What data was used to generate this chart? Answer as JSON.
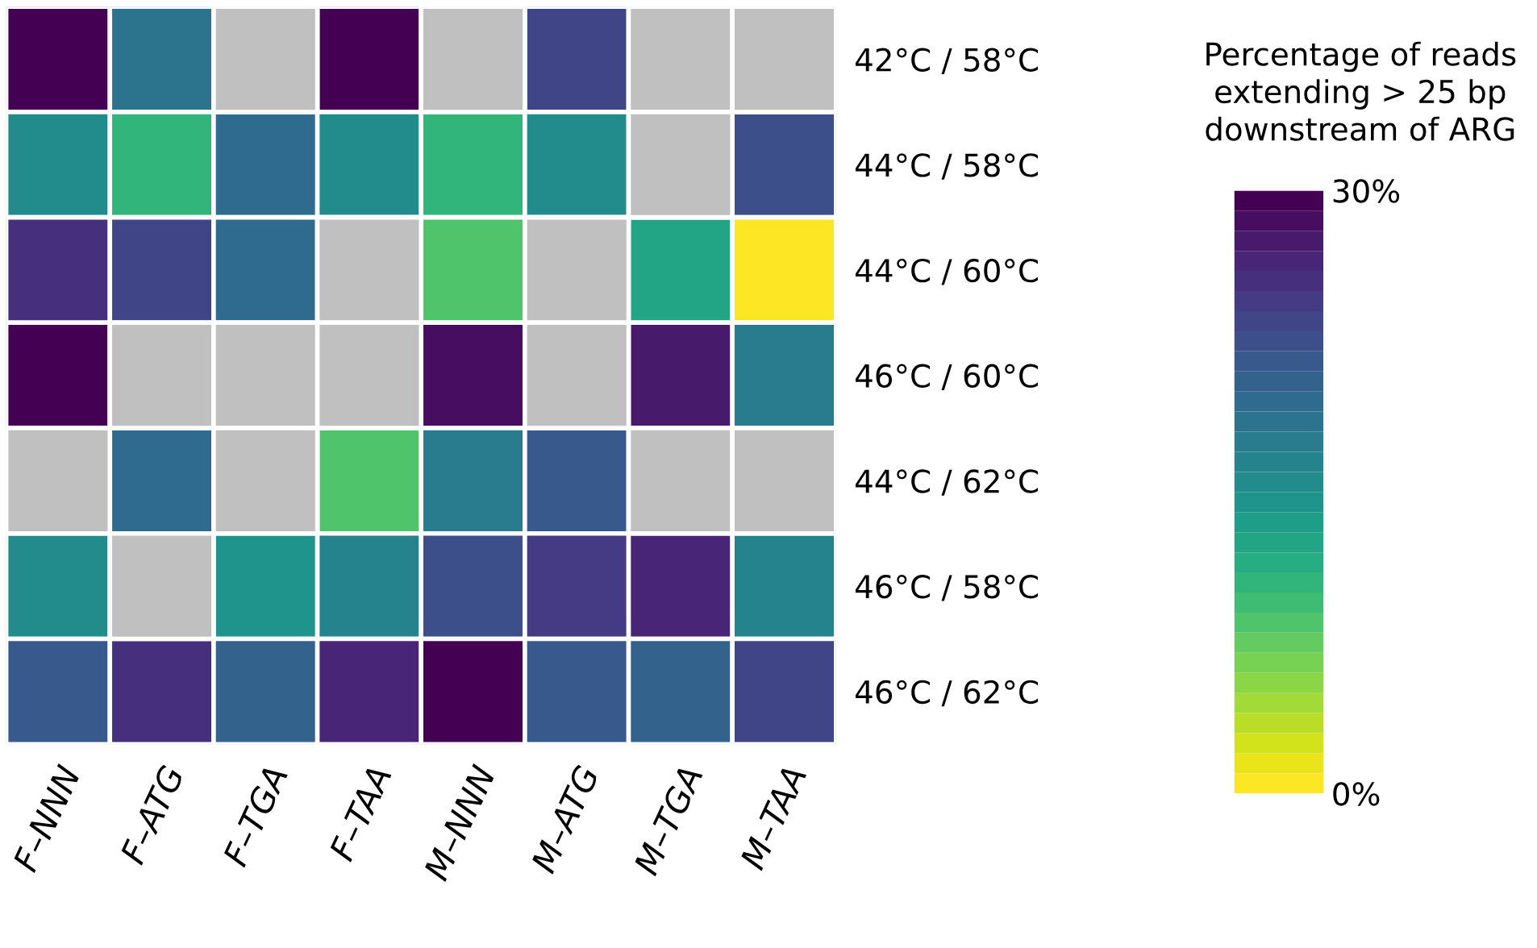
{
  "chart_data": {
    "type": "heatmap",
    "clabel": "Percentage of reads\nextending > 25 bp\ndownstream of ARG",
    "categories": [
      "F–NNN",
      "F–ATG",
      "F–TGA",
      "F–TAA",
      "M–NNN",
      "M–ATG",
      "M–TGA",
      "M–TAA"
    ],
    "y_categories": [
      "42°C / 58°C",
      "44°C / 58°C",
      "44°C / 60°C",
      "46°C / 60°C",
      "44°C / 62°C",
      "46°C / 58°C",
      "46°C / 62°C"
    ],
    "cells": [
      [
        29,
        18,
        null,
        30,
        null,
        23,
        null,
        null
      ],
      [
        15,
        10,
        19,
        15,
        10,
        15,
        null,
        22
      ],
      [
        25,
        23,
        19,
        null,
        8,
        null,
        12,
        0
      ],
      [
        29,
        null,
        null,
        null,
        28,
        null,
        27,
        17
      ],
      [
        null,
        19,
        null,
        8,
        17,
        21,
        null,
        null
      ],
      [
        15,
        null,
        14,
        16,
        22,
        24,
        26,
        16
      ],
      [
        21,
        25,
        20,
        26,
        30,
        21,
        20,
        23
      ]
    ],
    "clim": [
      0,
      30
    ],
    "cticks": [
      {
        "value": 0,
        "label": "0%"
      },
      {
        "value": 30,
        "label": "30%"
      }
    ]
  }
}
